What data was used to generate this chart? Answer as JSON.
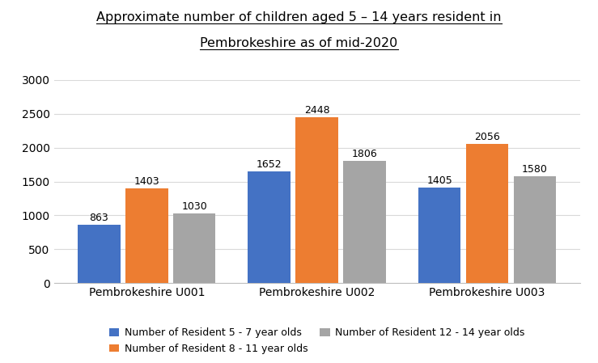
{
  "title_line1": "Approximate number of children aged 5 – 14 years resident in",
  "title_line2": "Pembrokeshire as of mid-2020",
  "categories": [
    "Pembrokeshire U001",
    "Pembrokeshire U002",
    "Pembrokeshire U003"
  ],
  "series": [
    {
      "label": "Number of Resident 5 - 7 year olds",
      "values": [
        863,
        1652,
        1405
      ],
      "color": "#4472C4"
    },
    {
      "label": "Number of Resident 8 - 11 year olds",
      "values": [
        1403,
        2448,
        2056
      ],
      "color": "#ED7D31"
    },
    {
      "label": "Number of Resident 12 - 14 year olds",
      "values": [
        1030,
        1806,
        1580
      ],
      "color": "#A5A5A5"
    }
  ],
  "ylim": [
    0,
    3000
  ],
  "yticks": [
    0,
    500,
    1000,
    1500,
    2000,
    2500,
    3000
  ],
  "bar_width": 0.25,
  "background_color": "#FFFFFF",
  "grid_color": "#D9D9D9",
  "title_fontsize": 11.5,
  "axis_fontsize": 10,
  "label_fontsize": 9,
  "legend_fontsize": 9
}
